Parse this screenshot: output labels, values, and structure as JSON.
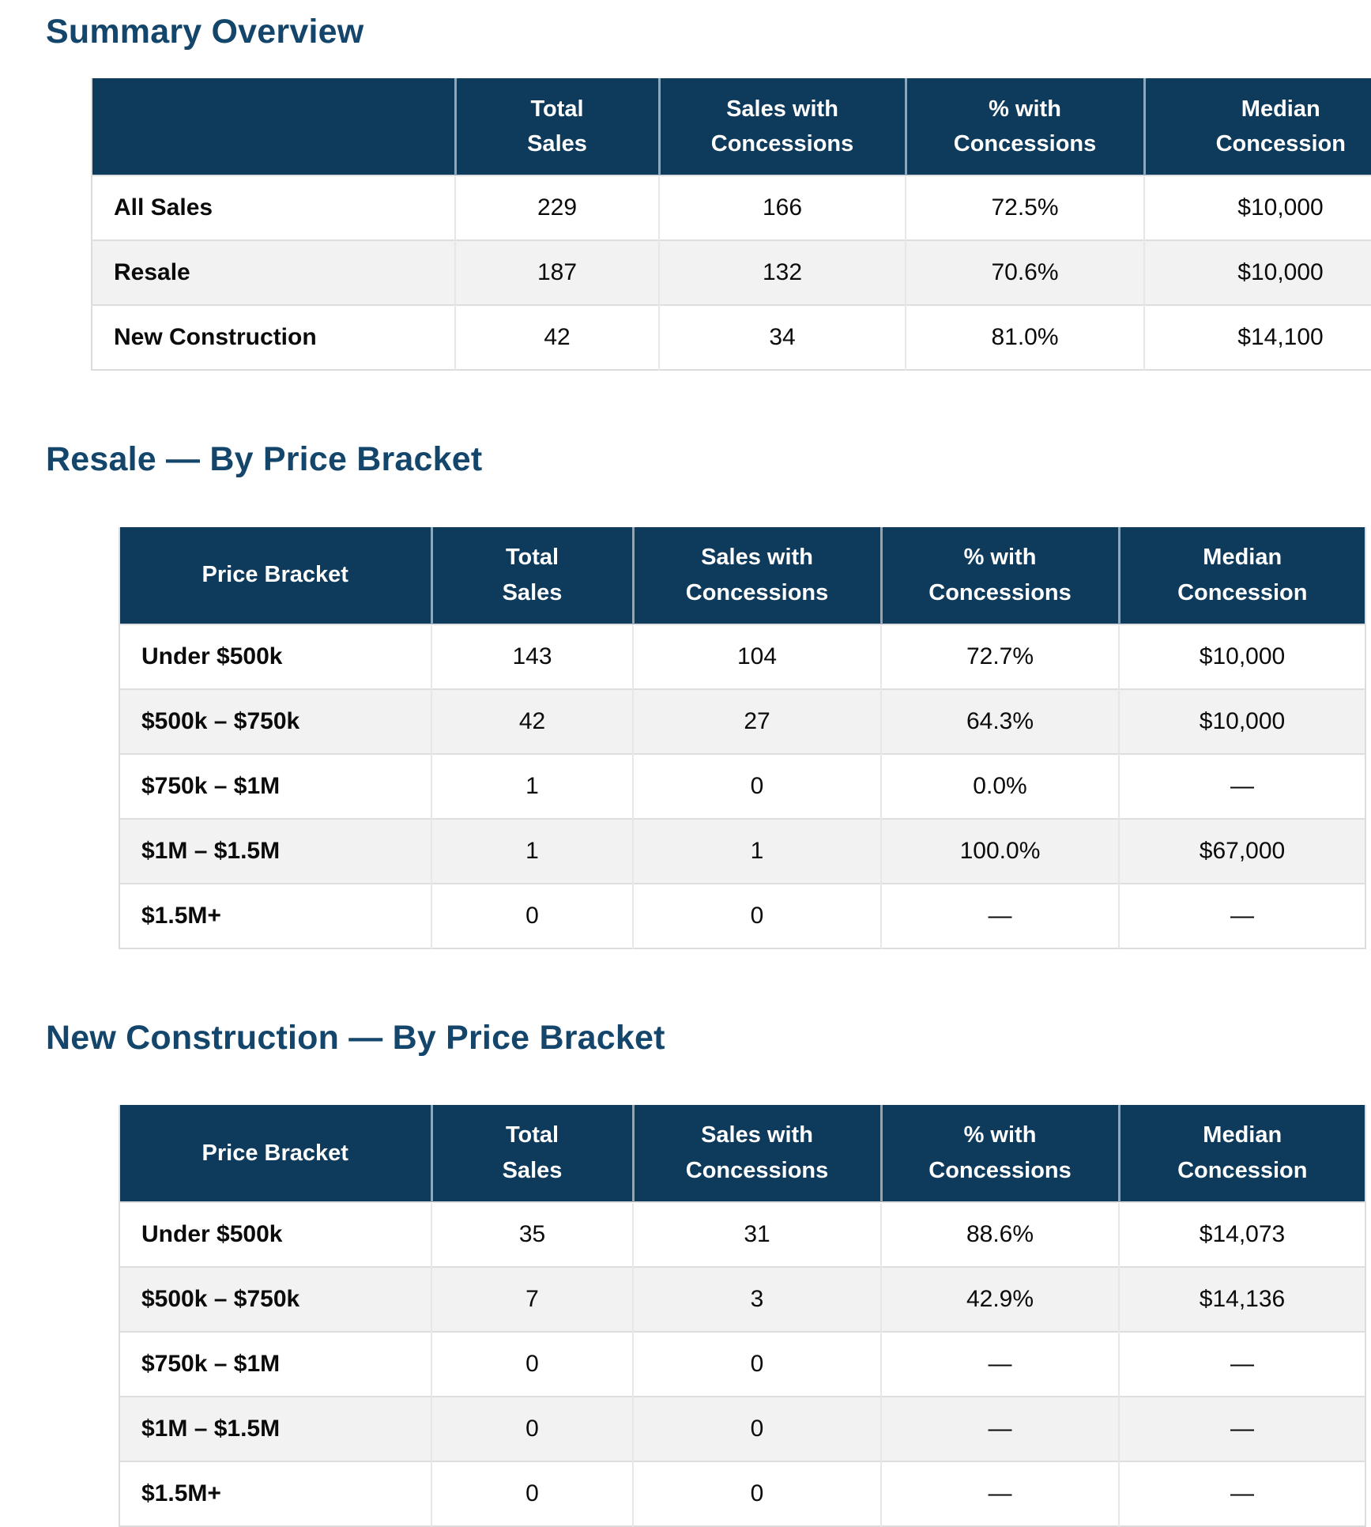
{
  "colors": {
    "table_header_bg": "#0E3A5C",
    "heading_text": "#14456B",
    "zebra_row": "#F2F2F2",
    "row_border": "#DEDEDE"
  },
  "sections": [
    {
      "heading": "Summary Overview",
      "table": {
        "headers": [
          "",
          "Total\nSales",
          "Sales with\nConcessions",
          "% with\nConcessions",
          "Median\nConcession"
        ],
        "rows": [
          {
            "label": "All Sales",
            "values": [
              "229",
              "166",
              "72.5%",
              "$10,000"
            ]
          },
          {
            "label": "Resale",
            "values": [
              "187",
              "132",
              "70.6%",
              "$10,000"
            ]
          },
          {
            "label": "New Construction",
            "values": [
              "42",
              "34",
              "81.0%",
              "$14,100"
            ]
          }
        ]
      }
    },
    {
      "heading": "Resale — By Price Bracket",
      "table": {
        "headers": [
          "Price Bracket",
          "Total\nSales",
          "Sales with\nConcessions",
          "% with\nConcessions",
          "Median\nConcession"
        ],
        "rows": [
          {
            "label": "Under $500k",
            "values": [
              "143",
              "104",
              "72.7%",
              "$10,000"
            ]
          },
          {
            "label": "$500k – $750k",
            "values": [
              "42",
              "27",
              "64.3%",
              "$10,000"
            ]
          },
          {
            "label": "$750k – $1M",
            "values": [
              "1",
              "0",
              "0.0%",
              "—"
            ]
          },
          {
            "label": "$1M – $1.5M",
            "values": [
              "1",
              "1",
              "100.0%",
              "$67,000"
            ]
          },
          {
            "label": "$1.5M+",
            "values": [
              "0",
              "0",
              "—",
              "—"
            ]
          }
        ]
      }
    },
    {
      "heading": "New Construction — By Price Bracket",
      "table": {
        "headers": [
          "Price Bracket",
          "Total\nSales",
          "Sales with\nConcessions",
          "% with\nConcessions",
          "Median\nConcession"
        ],
        "rows": [
          {
            "label": "Under $500k",
            "values": [
              "35",
              "31",
              "88.6%",
              "$14,073"
            ]
          },
          {
            "label": "$500k – $750k",
            "values": [
              "7",
              "3",
              "42.9%",
              "$14,136"
            ]
          },
          {
            "label": "$750k – $1M",
            "values": [
              "0",
              "0",
              "—",
              "—"
            ]
          },
          {
            "label": "$1M – $1.5M",
            "values": [
              "0",
              "0",
              "—",
              "—"
            ]
          },
          {
            "label": "$1.5M+",
            "values": [
              "0",
              "0",
              "—",
              "—"
            ]
          }
        ]
      }
    }
  ]
}
